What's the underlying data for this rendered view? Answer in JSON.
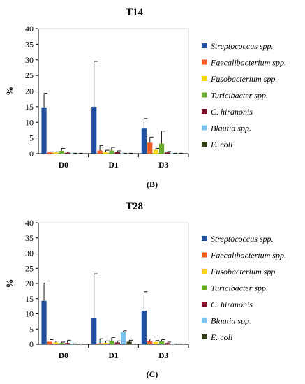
{
  "chart_data": [
    {
      "type": "bar",
      "title": "T14",
      "panel_label": "(B)",
      "ylabel": "%",
      "ylim": [
        0,
        40
      ],
      "yticks": [
        0,
        5,
        10,
        15,
        20,
        25,
        30,
        35,
        40
      ],
      "categories": [
        "D0",
        "D1",
        "D3"
      ],
      "legend_position": "right",
      "series": [
        {
          "name": "Streptococcus spp.",
          "color": "#1f4e9c",
          "values": [
            14.8,
            15.0,
            8.0
          ],
          "errors": [
            4.5,
            14.5,
            3.2
          ]
        },
        {
          "name": "Faecalibacterium spp.",
          "color": "#f15a22",
          "values": [
            0.4,
            1.0,
            3.5
          ],
          "errors": [
            0.2,
            1.6,
            1.8
          ]
        },
        {
          "name": "Fusobacterium spp.",
          "color": "#f5d316",
          "values": [
            0.4,
            0.6,
            1.2
          ],
          "errors": [
            0.2,
            0.5,
            0.5
          ]
        },
        {
          "name": "Turicibacter spp.",
          "color": "#6aaa2e",
          "values": [
            0.9,
            1.0,
            3.2
          ],
          "errors": [
            0.8,
            1.0,
            4.0
          ]
        },
        {
          "name": "C. hiranonis",
          "color": "#7b1428",
          "values": [
            0.3,
            0.5,
            0.4
          ],
          "errors": [
            0.2,
            0.4,
            0.3
          ]
        },
        {
          "name": "Blautia spp.",
          "color": "#7fc4ee",
          "values": [
            0.1,
            0.1,
            0.1
          ],
          "errors": [
            0.05,
            0.05,
            0.05
          ]
        },
        {
          "name": "E. coli",
          "color": "#2f3b12",
          "values": [
            0.1,
            0.1,
            0.1
          ],
          "errors": [
            0.05,
            0.05,
            0.05
          ]
        }
      ]
    },
    {
      "type": "bar",
      "title": "T28",
      "panel_label": "(C)",
      "ylabel": "%",
      "ylim": [
        0,
        40
      ],
      "yticks": [
        0,
        5,
        10,
        15,
        20,
        25,
        30,
        35,
        40
      ],
      "categories": [
        "D0",
        "D1",
        "D3"
      ],
      "legend_position": "right",
      "series": [
        {
          "name": "Streptococcus spp.",
          "color": "#1f4e9c",
          "values": [
            14.3,
            8.5,
            11.0
          ],
          "errors": [
            5.8,
            14.7,
            6.3
          ]
        },
        {
          "name": "Faecalibacterium spp.",
          "color": "#f15a22",
          "values": [
            0.8,
            0.3,
            0.9
          ],
          "errors": [
            0.7,
            1.5,
            0.8
          ]
        },
        {
          "name": "Fusobacterium spp.",
          "color": "#f5d316",
          "values": [
            0.6,
            0.5,
            0.7
          ],
          "errors": [
            0.4,
            0.6,
            0.5
          ]
        },
        {
          "name": "Turicibacter spp.",
          "color": "#6aaa2e",
          "values": [
            0.4,
            1.2,
            0.9
          ],
          "errors": [
            0.3,
            1.0,
            0.6
          ]
        },
        {
          "name": "C. hiranonis",
          "color": "#7b1428",
          "values": [
            0.4,
            0.6,
            0.4
          ],
          "errors": [
            0.9,
            0.5,
            0.3
          ]
        },
        {
          "name": "Blautia spp.",
          "color": "#7fc4ee",
          "values": [
            0.1,
            4.0,
            0.1
          ],
          "errors": [
            0.05,
            0.4,
            0.05
          ]
        },
        {
          "name": "E. coli",
          "color": "#2f3b12",
          "values": [
            0.1,
            0.8,
            0.1
          ],
          "errors": [
            0.05,
            0.5,
            0.05
          ]
        }
      ]
    }
  ]
}
